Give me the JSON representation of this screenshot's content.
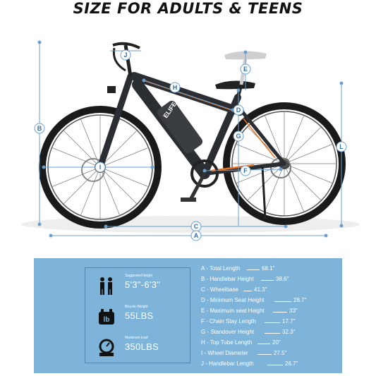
{
  "headline": "SIZE FOR ADULTS & TEENS",
  "bike": {
    "brand": "ELIFE",
    "dimension_letters": [
      "A",
      "B",
      "C",
      "D",
      "E",
      "F",
      "G",
      "H",
      "I",
      "J",
      "L"
    ]
  },
  "stats": [
    {
      "icon": "people-icon",
      "caption": "Suggested height",
      "value": "5'3\"-6'3\""
    },
    {
      "icon": "weight-icon",
      "caption": "Bicycle Weight",
      "value": "55LBS"
    },
    {
      "icon": "scale-icon",
      "caption": "Maximum load",
      "value": "350LBS"
    }
  ],
  "dimensions": [
    {
      "name": "A - Total Length",
      "value": "68.1\""
    },
    {
      "name": "B - Handlebar Height",
      "value": "38.6\""
    },
    {
      "name": "C - Wheelbase",
      "value": "41.3\""
    },
    {
      "name": "D - Minimum Seat Height",
      "value": "28.7\""
    },
    {
      "name": "E - Maximum seat Height",
      "value": "33\""
    },
    {
      "name": "F - Chain Stay Length",
      "value": "17.7\""
    },
    {
      "name": "G - Standover Height",
      "value": "32.3\""
    },
    {
      "name": "H - Top Tube Length",
      "value": "20\""
    },
    {
      "name": "I - Wheel Diameter",
      "value": "27.5\""
    },
    {
      "name": "J - Handlebar Length",
      "value": "26.7\""
    }
  ],
  "colors": {
    "panel": "#7eb4d9",
    "accent": "#2f6ea8",
    "frame": "#2a2d31",
    "orange": "#e8731e"
  }
}
